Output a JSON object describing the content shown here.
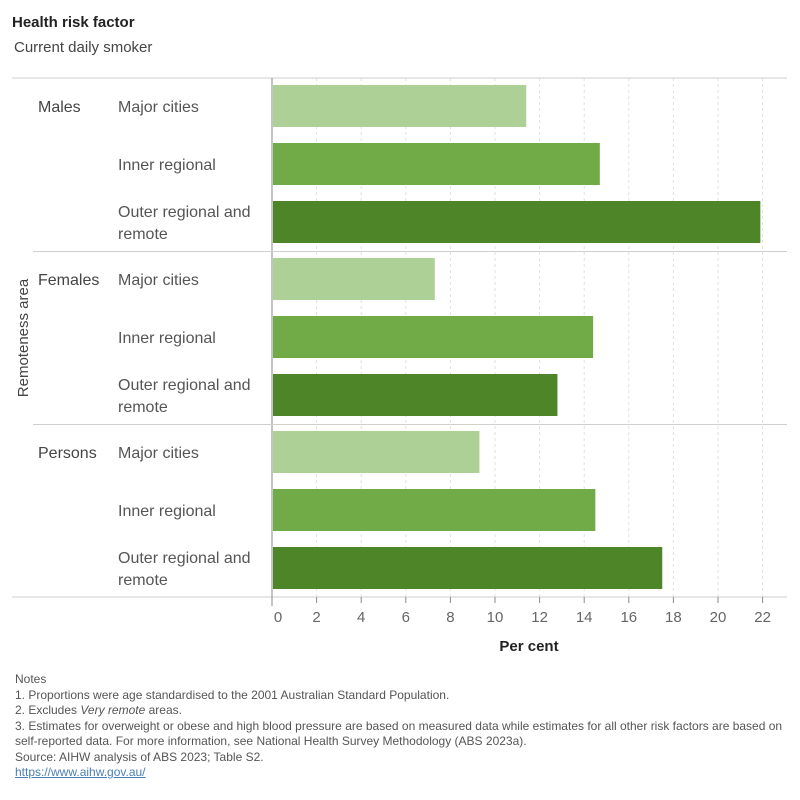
{
  "header": {
    "title": "Health risk factor",
    "subtitle": "Current daily smoker"
  },
  "chart_data": {
    "type": "bar",
    "orientation": "horizontal",
    "xlabel": "Per cent",
    "ylabel": "Remoteness area",
    "xlim": [
      0,
      22
    ],
    "xticks": [
      0,
      2,
      4,
      6,
      8,
      10,
      12,
      14,
      16,
      18,
      20,
      22
    ],
    "grid": true,
    "groups": [
      {
        "name": "Males",
        "bars": [
          {
            "category": "Major cities",
            "value": 11.4
          },
          {
            "category": "Inner regional",
            "value": 14.7
          },
          {
            "category": "Outer regional and remote",
            "value": 21.9
          }
        ]
      },
      {
        "name": "Females",
        "bars": [
          {
            "category": "Major cities",
            "value": 7.3
          },
          {
            "category": "Inner regional",
            "value": 14.4
          },
          {
            "category": "Outer regional and remote",
            "value": 12.8
          }
        ]
      },
      {
        "name": "Persons",
        "bars": [
          {
            "category": "Major cities",
            "value": 9.3
          },
          {
            "category": "Inner regional",
            "value": 14.5
          },
          {
            "category": "Outer regional and remote",
            "value": 17.5
          }
        ]
      }
    ],
    "colors": {
      "Major cities": "#acd095",
      "Inner regional": "#70ab47",
      "Outer regional and remote": "#4e8528"
    }
  },
  "notes": {
    "heading": "Notes",
    "note1": "1. Proportions were age standardised to the 2001 Australian Standard Population.",
    "note2_prefix": "2. Excludes ",
    "note2_italic": "Very remote",
    "note2_suffix": " areas.",
    "note3": "3. Estimates for overweight or obese and high blood pressure are based on measured data while estimates for all other risk factors are based on self-reported data. For more information, see National Health Survey Methodology (ABS 2023a).",
    "source": "Source: AIHW analysis of ABS 2023; Table S2.",
    "link": "https://www.aihw.gov.au/"
  }
}
